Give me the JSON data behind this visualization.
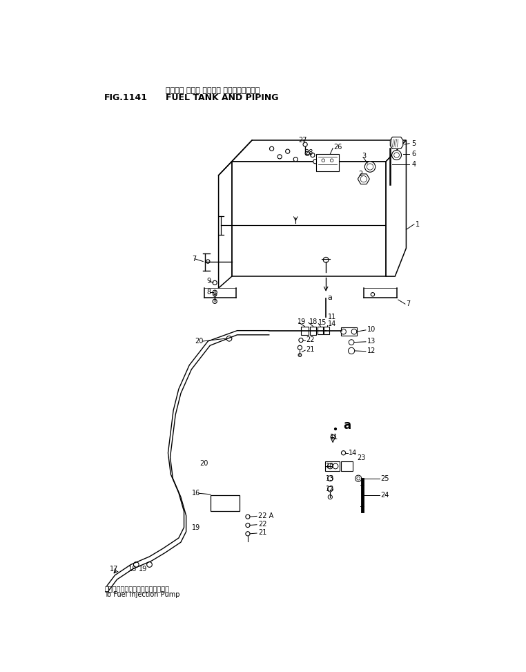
{
  "title_japanese": "フェルル タンク オヨヒ゛ ハ゛イヒ゛ンク゛",
  "title_english": "FUEL TANK AND PIPING",
  "fig_number": "FIG.1141",
  "footer_japanese": "フュエルインジェクションポンプへ",
  "footer_english": "To Fuel Injection Pump",
  "bg_color": "#ffffff",
  "line_color": "#000000",
  "text_color": "#000000"
}
